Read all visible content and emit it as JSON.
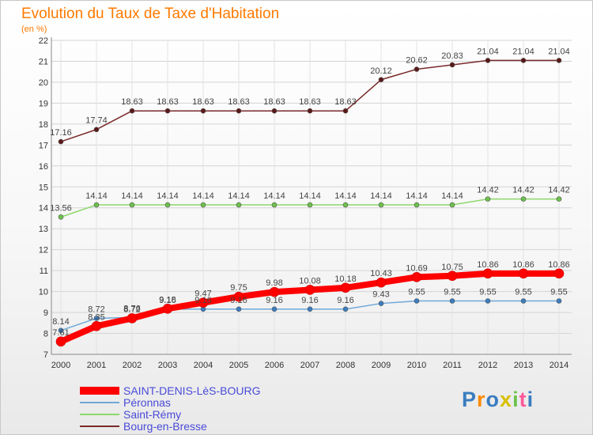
{
  "title": "Evolution du Taux de Taxe d'Habitation",
  "unit": "(en %)",
  "logo": "Proxiti",
  "colors": {
    "title": "#ff7a00",
    "legend_text": "#4a4ad8"
  },
  "chart_data": {
    "type": "line",
    "title": "Evolution du Taux de Taxe d'Habitation",
    "ylabel": "(en %)",
    "xlabel": "",
    "ylim": [
      7,
      22
    ],
    "yticks": [
      7,
      8,
      9,
      10,
      11,
      12,
      13,
      14,
      15,
      16,
      17,
      18,
      19,
      20,
      21,
      22
    ],
    "grid": true,
    "legend_position": "bottom-left",
    "categories": [
      "2000",
      "2001",
      "2002",
      "2003",
      "2004",
      "2005",
      "2006",
      "2007",
      "2008",
      "2009",
      "2010",
      "2011",
      "2012",
      "2013",
      "2014"
    ],
    "series": [
      {
        "name": "SAINT-DENIS-LèS-BOURG",
        "color": "#ff0000",
        "point_color": "#ff0000",
        "values": [
          7.61,
          8.35,
          8.72,
          9.18,
          9.47,
          9.75,
          9.98,
          10.08,
          10.18,
          10.43,
          10.69,
          10.75,
          10.86,
          10.86,
          10.86
        ],
        "labels": [
          "7.61",
          "8.35",
          "8.72",
          "9.18",
          "9.47",
          "9.75",
          "9.98",
          "10.08",
          "10.18",
          "10.43",
          "10.69",
          "10.75",
          "10.86",
          "10.86",
          "10.86"
        ]
      },
      {
        "name": "Péronnas",
        "color": "#6fa8d8",
        "point_color": "#3a7dc0",
        "values": [
          8.14,
          8.72,
          8.76,
          9.16,
          9.16,
          9.16,
          9.16,
          9.16,
          9.16,
          9.43,
          9.55,
          9.55,
          9.55,
          9.55,
          9.55
        ],
        "labels": [
          "8.14",
          "8.72",
          "8.76",
          "9.16",
          "9.16",
          "9.16",
          "9.16",
          "9.16",
          "9.16",
          "9.43",
          "9.55",
          "9.55",
          "9.55",
          "9.55",
          "9.55"
        ]
      },
      {
        "name": "Saint-Rémy",
        "color": "#8dd86b",
        "point_color": "#6cc24a",
        "values": [
          13.56,
          14.14,
          14.14,
          14.14,
          14.14,
          14.14,
          14.14,
          14.14,
          14.14,
          14.14,
          14.14,
          14.14,
          14.42,
          14.42,
          14.42
        ],
        "labels": [
          "13.56",
          "14.14",
          "14.14",
          "14.14",
          "14.14",
          "14.14",
          "14.14",
          "14.14",
          "14.14",
          "14.14",
          "14.14",
          "14.14",
          "14.42",
          "14.42",
          "14.42"
        ]
      },
      {
        "name": "Bourg-en-Bresse",
        "color": "#7a2a2a",
        "point_color": "#5a1818",
        "values": [
          17.16,
          17.74,
          18.63,
          18.63,
          18.63,
          18.63,
          18.63,
          18.63,
          18.63,
          20.12,
          20.62,
          20.83,
          21.04,
          21.04,
          21.04
        ],
        "labels": [
          "17.16",
          "17.74",
          "18.63",
          "18.63",
          "18.63",
          "18.63",
          "18.63",
          "18.63",
          "18.63",
          "20.12",
          "20.62",
          "20.83",
          "21.04",
          "21.04",
          "21.04"
        ]
      }
    ]
  }
}
